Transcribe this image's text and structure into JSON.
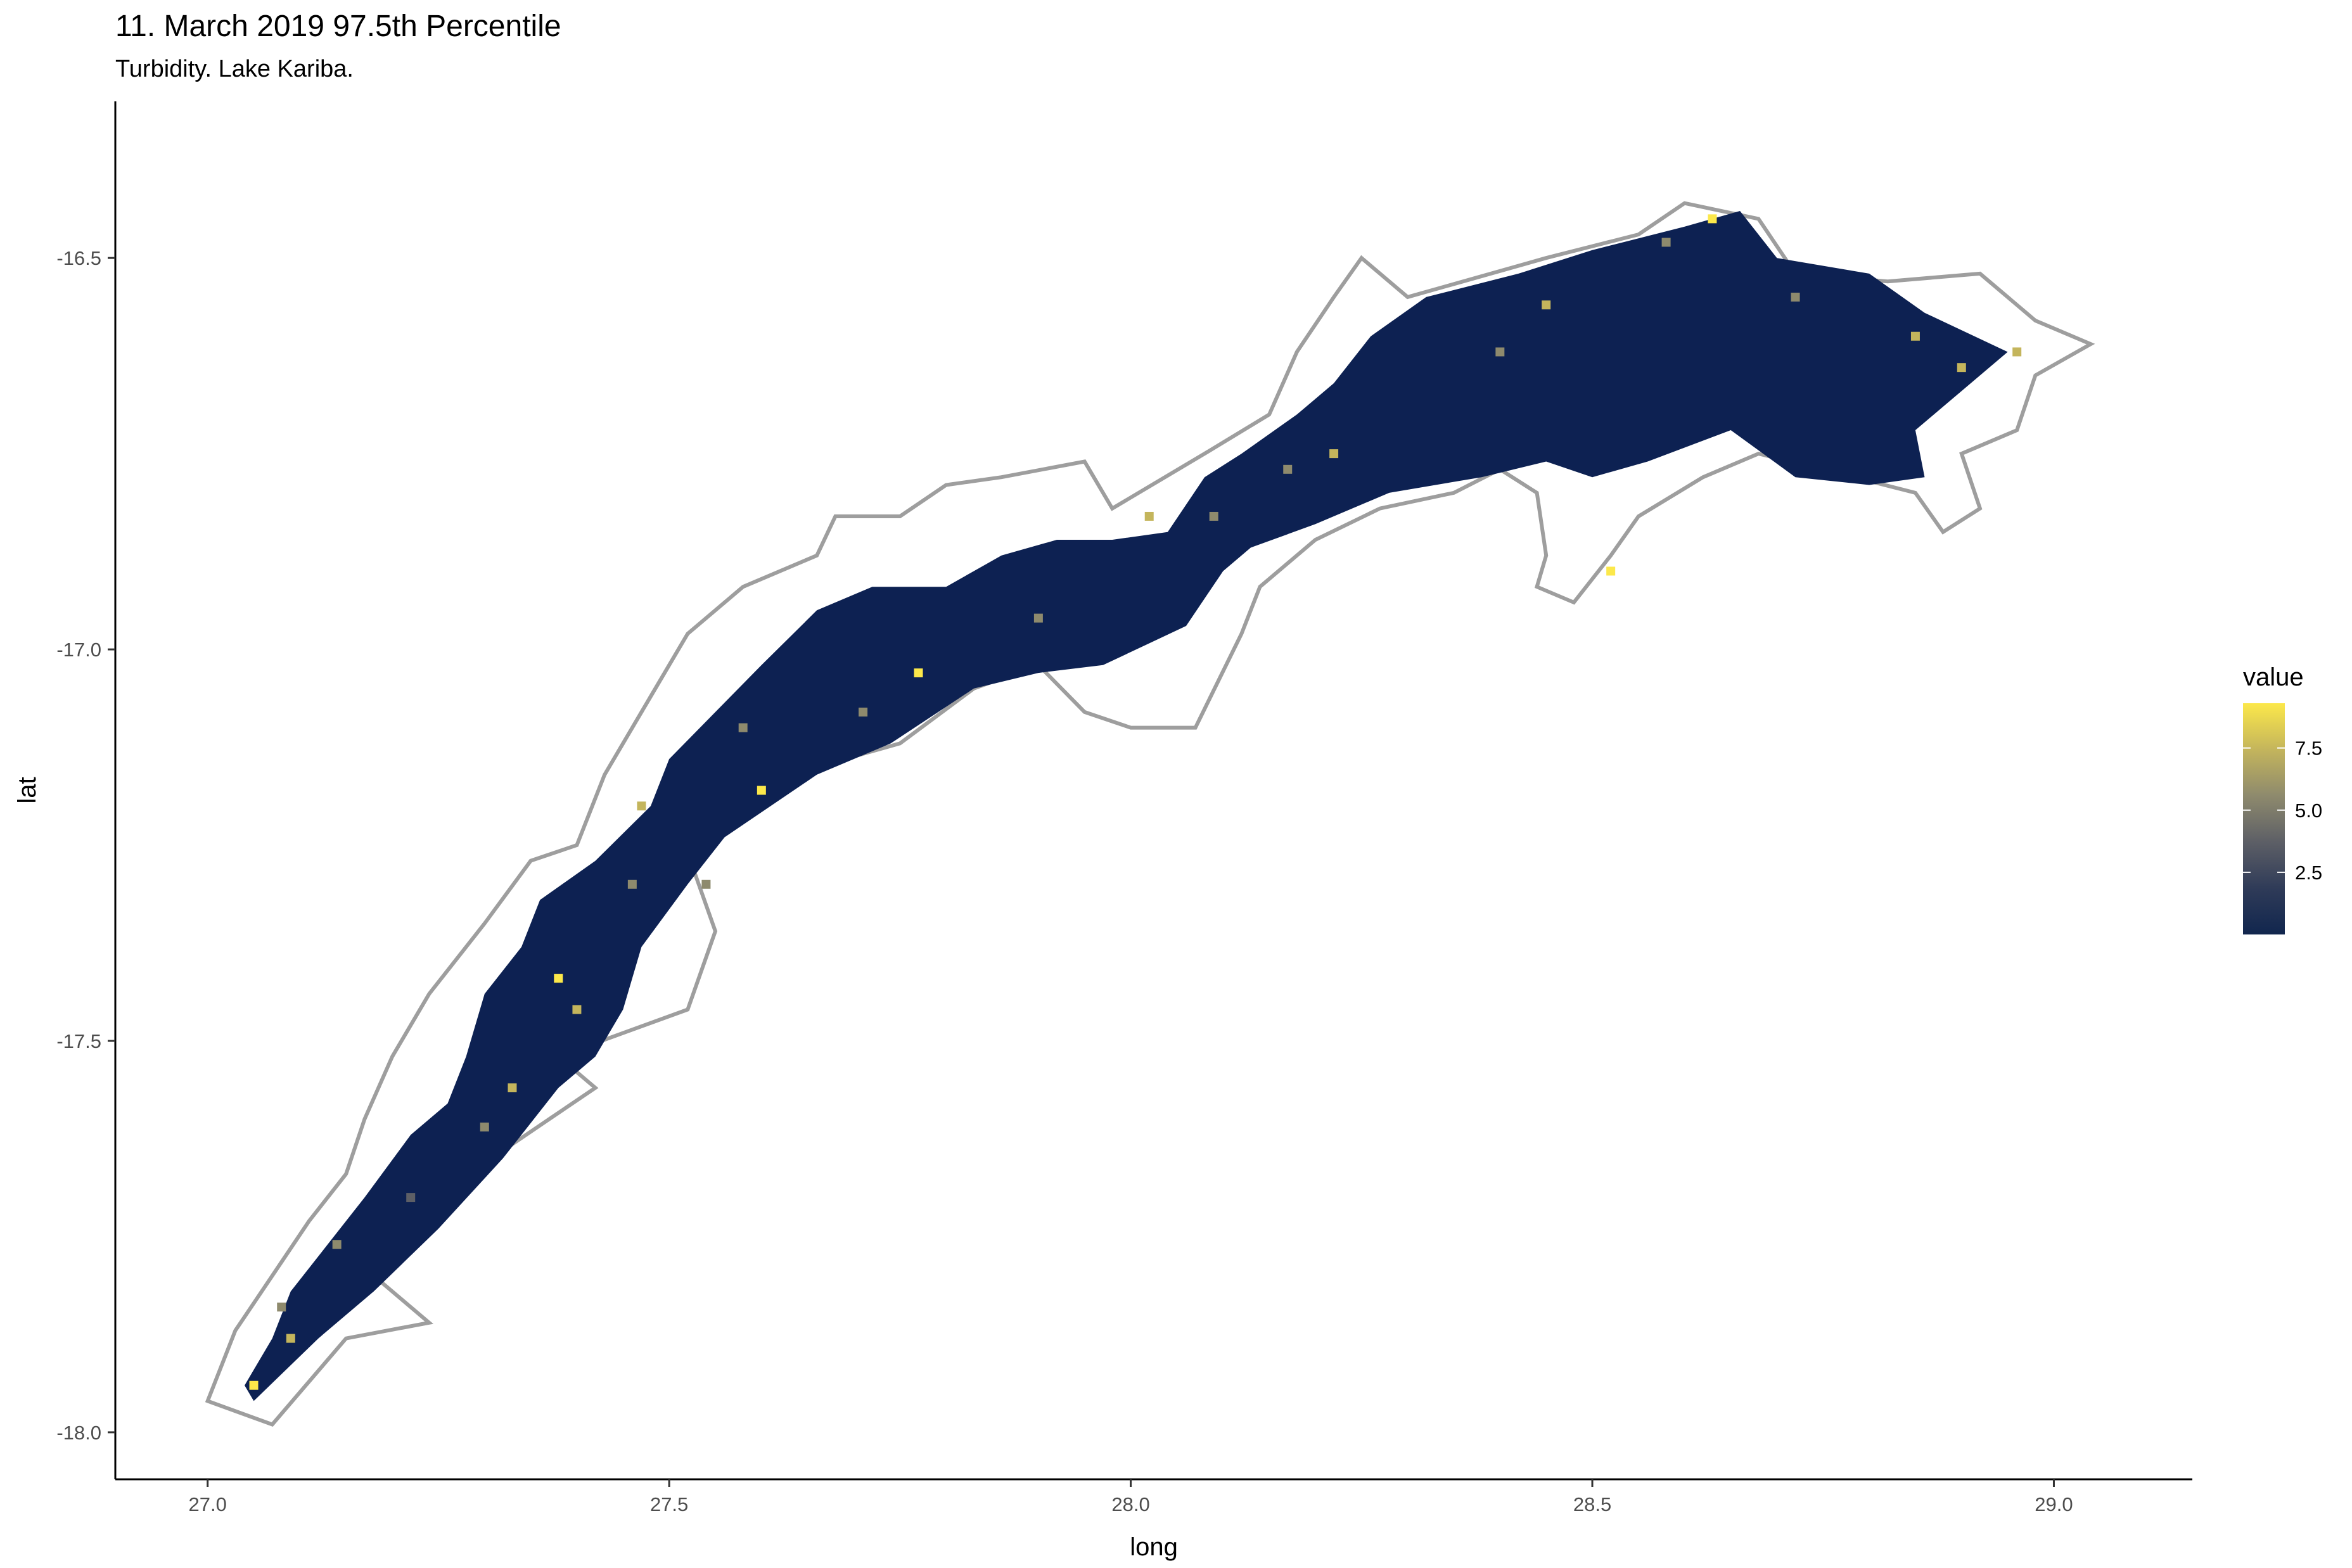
{
  "chart_data": {
    "type": "heatmap",
    "title": "11. March 2019 97.5th Percentile",
    "subtitle": "Turbidity. Lake Kariba.",
    "xlabel": "long",
    "ylabel": "lat",
    "xlim": [
      26.9,
      29.15
    ],
    "ylim": [
      -18.06,
      -16.3
    ],
    "x_ticks": [
      27.0,
      27.5,
      28.0,
      28.5,
      29.0
    ],
    "x_tick_labels": [
      "27.0",
      "27.5",
      "28.0",
      "28.5",
      "29.0"
    ],
    "y_ticks": [
      -16.5,
      -17.0,
      -17.5,
      -18.0
    ],
    "y_tick_labels": [
      "-16.5",
      "-17.0",
      "-17.5",
      "-18.0"
    ],
    "grid": false,
    "legend": {
      "title": "value",
      "placement": "right",
      "range": [
        0,
        9.3
      ],
      "breaks": [
        2.5,
        5.0,
        7.5
      ],
      "break_labels": [
        "2.5",
        "5.0",
        "7.5"
      ],
      "colors": [
        "#11264e",
        "#2f3b58",
        "#5d5f66",
        "#8e8a6d",
        "#c4b55c",
        "#fce84a"
      ]
    },
    "fill_color": "#0d2152",
    "outline_color": "#9e9e9e",
    "lake_outline": [
      [
        27.0,
        -17.96
      ],
      [
        27.07,
        -17.99
      ],
      [
        27.15,
        -17.88
      ],
      [
        27.24,
        -17.86
      ],
      [
        27.18,
        -17.8
      ],
      [
        27.25,
        -17.73
      ],
      [
        27.32,
        -17.64
      ],
      [
        27.37,
        -17.6
      ],
      [
        27.42,
        -17.56
      ],
      [
        27.38,
        -17.52
      ],
      [
        27.45,
        -17.49
      ],
      [
        27.52,
        -17.46
      ],
      [
        27.55,
        -17.36
      ],
      [
        27.52,
        -17.26
      ],
      [
        27.6,
        -17.2
      ],
      [
        27.66,
        -17.15
      ],
      [
        27.75,
        -17.12
      ],
      [
        27.83,
        -17.05
      ],
      [
        27.9,
        -17.02
      ],
      [
        27.95,
        -17.08
      ],
      [
        28.0,
        -17.1
      ],
      [
        28.07,
        -17.1
      ],
      [
        28.12,
        -16.98
      ],
      [
        28.14,
        -16.92
      ],
      [
        28.2,
        -16.86
      ],
      [
        28.27,
        -16.82
      ],
      [
        28.35,
        -16.8
      ],
      [
        28.4,
        -16.77
      ],
      [
        28.44,
        -16.8
      ],
      [
        28.45,
        -16.88
      ],
      [
        28.44,
        -16.92
      ],
      [
        28.48,
        -16.94
      ],
      [
        28.52,
        -16.88
      ],
      [
        28.55,
        -16.83
      ],
      [
        28.62,
        -16.78
      ],
      [
        28.68,
        -16.75
      ],
      [
        28.75,
        -16.77
      ],
      [
        28.85,
        -16.8
      ],
      [
        28.88,
        -16.85
      ],
      [
        28.92,
        -16.82
      ],
      [
        28.9,
        -16.75
      ],
      [
        28.96,
        -16.72
      ],
      [
        28.98,
        -16.65
      ],
      [
        29.04,
        -16.61
      ],
      [
        28.98,
        -16.58
      ],
      [
        28.92,
        -16.52
      ],
      [
        28.82,
        -16.53
      ],
      [
        28.72,
        -16.52
      ],
      [
        28.68,
        -16.45
      ],
      [
        28.6,
        -16.43
      ],
      [
        28.55,
        -16.47
      ],
      [
        28.45,
        -16.5
      ],
      [
        28.3,
        -16.55
      ],
      [
        28.25,
        -16.5
      ],
      [
        28.22,
        -16.55
      ],
      [
        28.18,
        -16.62
      ],
      [
        28.15,
        -16.7
      ],
      [
        28.08,
        -16.75
      ],
      [
        27.98,
        -16.82
      ],
      [
        27.95,
        -16.76
      ],
      [
        27.86,
        -16.78
      ],
      [
        27.8,
        -16.79
      ],
      [
        27.75,
        -16.83
      ],
      [
        27.68,
        -16.83
      ],
      [
        27.66,
        -16.88
      ],
      [
        27.58,
        -16.92
      ],
      [
        27.52,
        -16.98
      ],
      [
        27.48,
        -17.06
      ],
      [
        27.43,
        -17.16
      ],
      [
        27.4,
        -17.25
      ],
      [
        27.35,
        -17.27
      ],
      [
        27.3,
        -17.35
      ],
      [
        27.24,
        -17.44
      ],
      [
        27.2,
        -17.52
      ],
      [
        27.17,
        -17.6
      ],
      [
        27.15,
        -17.67
      ],
      [
        27.11,
        -17.73
      ],
      [
        27.07,
        -17.8
      ],
      [
        27.03,
        -17.87
      ],
      [
        27.0,
        -17.96
      ]
    ],
    "lake_fill": [
      [
        27.05,
        -17.96
      ],
      [
        27.12,
        -17.88
      ],
      [
        27.18,
        -17.82
      ],
      [
        27.25,
        -17.74
      ],
      [
        27.32,
        -17.65
      ],
      [
        27.38,
        -17.56
      ],
      [
        27.42,
        -17.52
      ],
      [
        27.45,
        -17.46
      ],
      [
        27.47,
        -17.38
      ],
      [
        27.52,
        -17.3
      ],
      [
        27.56,
        -17.24
      ],
      [
        27.66,
        -17.16
      ],
      [
        27.74,
        -17.12
      ],
      [
        27.83,
        -17.05
      ],
      [
        27.9,
        -17.03
      ],
      [
        27.97,
        -17.02
      ],
      [
        28.06,
        -16.97
      ],
      [
        28.1,
        -16.9
      ],
      [
        28.13,
        -16.87
      ],
      [
        28.2,
        -16.84
      ],
      [
        28.28,
        -16.8
      ],
      [
        28.38,
        -16.78
      ],
      [
        28.45,
        -16.76
      ],
      [
        28.5,
        -16.78
      ],
      [
        28.56,
        -16.76
      ],
      [
        28.65,
        -16.72
      ],
      [
        28.72,
        -16.78
      ],
      [
        28.8,
        -16.79
      ],
      [
        28.86,
        -16.78
      ],
      [
        28.85,
        -16.72
      ],
      [
        28.9,
        -16.67
      ],
      [
        28.95,
        -16.62
      ],
      [
        28.86,
        -16.57
      ],
      [
        28.8,
        -16.52
      ],
      [
        28.7,
        -16.5
      ],
      [
        28.66,
        -16.44
      ],
      [
        28.6,
        -16.46
      ],
      [
        28.5,
        -16.49
      ],
      [
        28.42,
        -16.52
      ],
      [
        28.32,
        -16.55
      ],
      [
        28.26,
        -16.6
      ],
      [
        28.22,
        -16.66
      ],
      [
        28.18,
        -16.7
      ],
      [
        28.12,
        -16.75
      ],
      [
        28.08,
        -16.78
      ],
      [
        28.04,
        -16.85
      ],
      [
        27.98,
        -16.86
      ],
      [
        27.92,
        -16.86
      ],
      [
        27.86,
        -16.88
      ],
      [
        27.8,
        -16.92
      ],
      [
        27.72,
        -16.92
      ],
      [
        27.66,
        -16.95
      ],
      [
        27.6,
        -17.02
      ],
      [
        27.55,
        -17.08
      ],
      [
        27.5,
        -17.14
      ],
      [
        27.48,
        -17.2
      ],
      [
        27.42,
        -17.27
      ],
      [
        27.36,
        -17.32
      ],
      [
        27.34,
        -17.38
      ],
      [
        27.3,
        -17.44
      ],
      [
        27.28,
        -17.52
      ],
      [
        27.26,
        -17.58
      ],
      [
        27.22,
        -17.62
      ],
      [
        27.17,
        -17.7
      ],
      [
        27.13,
        -17.76
      ],
      [
        27.09,
        -17.82
      ],
      [
        27.07,
        -17.88
      ],
      [
        27.04,
        -17.94
      ],
      [
        27.05,
        -17.96
      ]
    ],
    "hotspots": [
      {
        "x": 27.05,
        "y": -17.94,
        "value": 9.0
      },
      {
        "x": 27.09,
        "y": -17.88,
        "value": 7.5
      },
      {
        "x": 27.08,
        "y": -17.84,
        "value": 6.0
      },
      {
        "x": 27.14,
        "y": -17.76,
        "value": 5.5
      },
      {
        "x": 27.22,
        "y": -17.7,
        "value": 4.5
      },
      {
        "x": 27.3,
        "y": -17.61,
        "value": 6.5
      },
      {
        "x": 27.33,
        "y": -17.56,
        "value": 8.0
      },
      {
        "x": 27.4,
        "y": -17.46,
        "value": 7.0
      },
      {
        "x": 27.38,
        "y": -17.42,
        "value": 8.5
      },
      {
        "x": 27.46,
        "y": -17.3,
        "value": 5.0
      },
      {
        "x": 27.47,
        "y": -17.2,
        "value": 7.5
      },
      {
        "x": 27.54,
        "y": -17.3,
        "value": 6.0
      },
      {
        "x": 27.6,
        "y": -17.18,
        "value": 8.5
      },
      {
        "x": 27.71,
        "y": -17.08,
        "value": 6.5
      },
      {
        "x": 27.77,
        "y": -17.03,
        "value": 9.0
      },
      {
        "x": 27.9,
        "y": -16.96,
        "value": 5.5
      },
      {
        "x": 28.02,
        "y": -16.83,
        "value": 7.0
      },
      {
        "x": 28.09,
        "y": -16.83,
        "value": 6.0
      },
      {
        "x": 28.17,
        "y": -16.77,
        "value": 5.0
      },
      {
        "x": 28.22,
        "y": -16.75,
        "value": 8.0
      },
      {
        "x": 28.4,
        "y": -16.62,
        "value": 6.0
      },
      {
        "x": 28.45,
        "y": -16.56,
        "value": 7.5
      },
      {
        "x": 28.58,
        "y": -16.48,
        "value": 5.5
      },
      {
        "x": 28.63,
        "y": -16.45,
        "value": 8.5
      },
      {
        "x": 28.72,
        "y": -16.55,
        "value": 6.5
      },
      {
        "x": 28.85,
        "y": -16.6,
        "value": 7.0
      },
      {
        "x": 28.9,
        "y": -16.64,
        "value": 8.0
      },
      {
        "x": 28.96,
        "y": -16.62,
        "value": 7.5
      },
      {
        "x": 28.52,
        "y": -16.9,
        "value": 9.0
      },
      {
        "x": 27.58,
        "y": -17.1,
        "value": 5.0
      }
    ]
  }
}
